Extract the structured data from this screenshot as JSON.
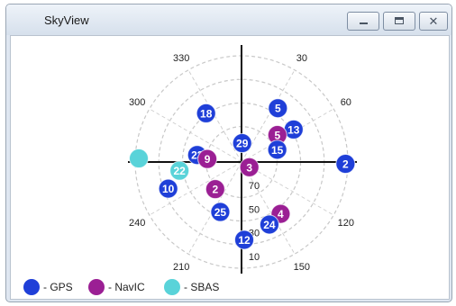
{
  "window": {
    "title": "SkyView"
  },
  "controls": {
    "minimize": "minimize-icon",
    "maximize": "maximize-icon",
    "close": "close-icon",
    "close_glyph": "✕"
  },
  "sky": {
    "azimuth_labels": [
      {
        "text": "330",
        "az": 330
      },
      {
        "text": "30",
        "az": 30
      },
      {
        "text": "300",
        "az": 300
      },
      {
        "text": "60",
        "az": 60
      },
      {
        "text": "240",
        "az": 240
      },
      {
        "text": "120",
        "az": 120
      },
      {
        "text": "210",
        "az": 210
      },
      {
        "text": "150",
        "az": 150
      }
    ],
    "elevation_labels": [
      {
        "text": "70",
        "elev": 70
      },
      {
        "text": "50",
        "elev": 50
      },
      {
        "text": "30",
        "elev": 30
      },
      {
        "text": "10",
        "elev": 10
      }
    ],
    "satellites": [
      {
        "id": "18",
        "system": "GPS",
        "az": 324,
        "elev": 39
      },
      {
        "id": "5",
        "system": "GPS",
        "az": 34,
        "elev": 35
      },
      {
        "id": "13",
        "system": "GPS",
        "az": 58,
        "elev": 38
      },
      {
        "id": "5",
        "system": "NavIC",
        "az": 53,
        "elev": 52
      },
      {
        "id": "29",
        "system": "GPS",
        "az": 2,
        "elev": 74
      },
      {
        "id": "15",
        "system": "GPS",
        "az": 71,
        "elev": 58
      },
      {
        "id": "2",
        "system": "GPS",
        "az": 91,
        "elev": 2
      },
      {
        "id": "23",
        "system": "GPS",
        "az": 279,
        "elev": 52
      },
      {
        "id": "9",
        "system": "NavIC",
        "az": 275,
        "elev": 61
      },
      {
        "id": "",
        "system": "SBAS",
        "az": 272,
        "elev": 3
      },
      {
        "id": "22",
        "system": "SBAS",
        "az": 262,
        "elev": 37
      },
      {
        "id": "3",
        "system": "NavIC",
        "az": 124,
        "elev": 82
      },
      {
        "id": "10",
        "system": "GPS",
        "az": 250,
        "elev": 24
      },
      {
        "id": "2",
        "system": "NavIC",
        "az": 224,
        "elev": 58
      },
      {
        "id": "25",
        "system": "GPS",
        "az": 203,
        "elev": 44
      },
      {
        "id": "4",
        "system": "NavIC",
        "az": 143,
        "elev": 35
      },
      {
        "id": "24",
        "system": "GPS",
        "az": 156,
        "elev": 32
      },
      {
        "id": "12",
        "system": "GPS",
        "az": 178,
        "elev": 24
      }
    ]
  },
  "legend": [
    {
      "key": "GPS",
      "label": "- GPS",
      "color": "#1f3fd8"
    },
    {
      "key": "NavIC",
      "label": "- NavIC",
      "color": "#9b1f94"
    },
    {
      "key": "SBAS",
      "label": "- SBAS",
      "color": "#59d3d9"
    }
  ]
}
